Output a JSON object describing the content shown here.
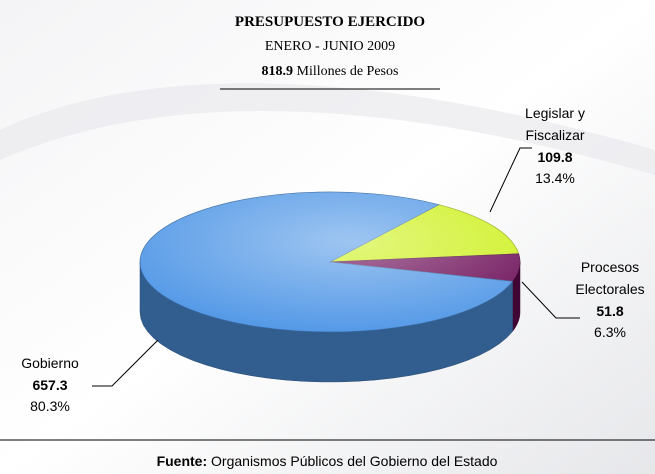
{
  "chart_data": {
    "type": "pie",
    "title": "PRESUPUESTO EJERCIDO",
    "subtitle": "ENERO - JUNIO 2009",
    "total": 818.9,
    "total_unit": "Millones de Pesos",
    "categories": [
      [
        "Gobierno"
      ],
      [
        "Legislar y",
        "Fiscalizar"
      ],
      [
        "Procesos",
        "Electorales"
      ]
    ],
    "values": [
      657.3,
      109.8,
      51.8
    ],
    "percent_labels": [
      "80.3%",
      "13.4%",
      "6.3%"
    ],
    "colors": [
      "#4f96e6",
      "#ccf018",
      "#6a0a55"
    ],
    "source_label": "Fuente:",
    "source": "Organismos Públicos del Gobierno del Estado"
  }
}
